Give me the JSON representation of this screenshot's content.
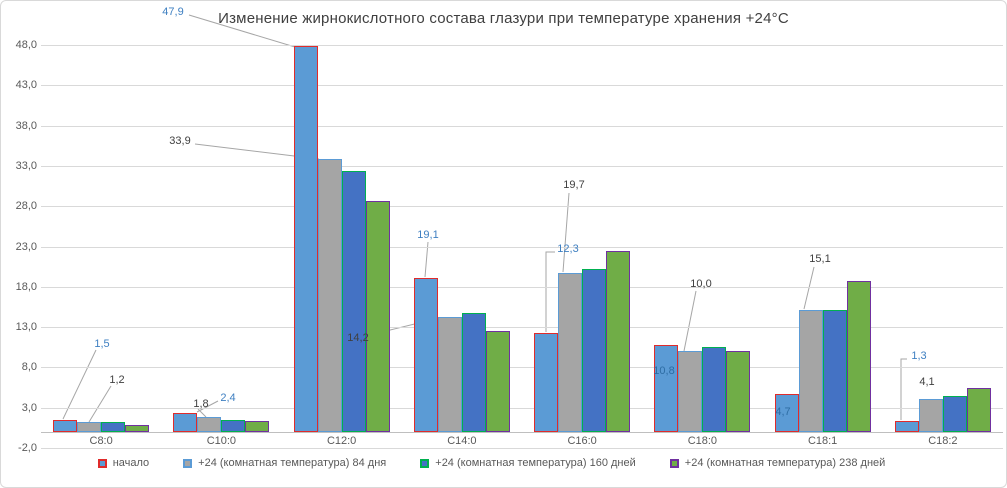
{
  "chart_data": {
    "type": "bar",
    "title": "Изменение жирнокислотного состава глазури при температуре хранения +24°С",
    "categories": [
      "C8:0",
      "C10:0",
      "C12:0",
      "C14:0",
      "C16:0",
      "C18:0",
      "C18:1",
      "C18:2"
    ],
    "series": [
      {
        "name": "начало",
        "fill": "#5B9BD5",
        "border": "#E02B2B",
        "label_color": "#3E7FC1",
        "values": [
          1.5,
          2.4,
          47.9,
          19.1,
          12.3,
          10.8,
          4.7,
          1.3
        ],
        "data_labels": [
          "1,5",
          "2,4",
          "47,9",
          "19,1",
          "12,3",
          "10,8",
          "4,7",
          "1,3"
        ]
      },
      {
        "name": "+24 (комнатная температура) 84 дня",
        "fill": "#A5A5A5",
        "border": "#5B9BD5",
        "label_color": "#404040",
        "values": [
          1.2,
          1.8,
          33.9,
          14.2,
          19.7,
          10.0,
          15.1,
          4.1
        ],
        "data_labels": [
          "1,2",
          "1,8",
          "33,9",
          "14,2",
          "19,7",
          "10,0",
          "15,1",
          "4,1"
        ]
      },
      {
        "name": "+24 (комнатная температура) 160 дней",
        "fill": "#4472C4",
        "border": "#00B050",
        "values": [
          1.2,
          1.5,
          32.4,
          14.7,
          20.2,
          10.5,
          15.1,
          4.4
        ],
        "data_labels": null
      },
      {
        "name": "+24 (комнатная температура) 238 дней",
        "fill": "#70AD47",
        "border": "#7030A0",
        "values": [
          0.8,
          1.3,
          28.7,
          12.5,
          22.5,
          10.0,
          18.7,
          5.4
        ],
        "data_labels": null
      }
    ],
    "y_axis": {
      "min": -2,
      "max": 48,
      "step": 5,
      "tick_labels": [
        "48,0",
        "43,0",
        "38,0",
        "33,0",
        "28,0",
        "23,0",
        "18,0",
        "13,0",
        "8,0",
        "3,0",
        "-2,0"
      ]
    },
    "xlabel": "",
    "ylabel": "",
    "grid": true,
    "legend_position": "bottom"
  }
}
